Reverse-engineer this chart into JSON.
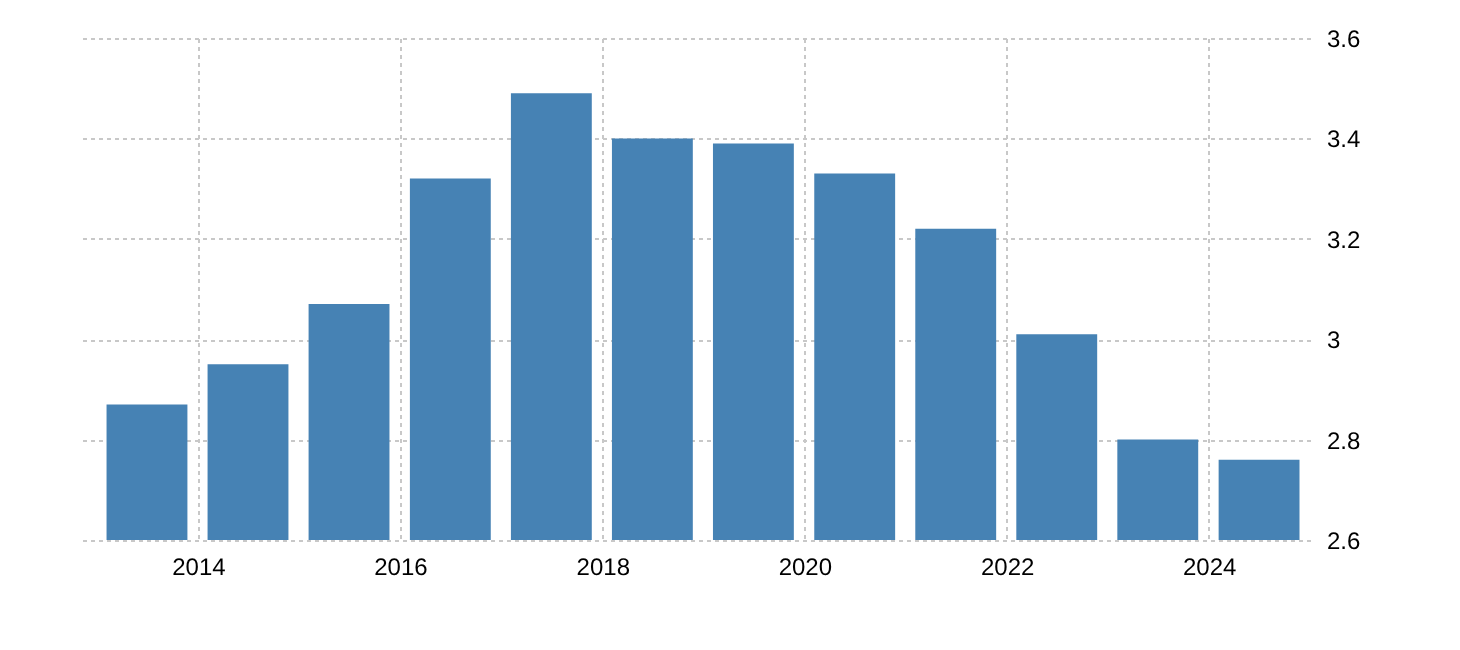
{
  "chart_data": {
    "type": "bar",
    "x": [
      "2013-07-01",
      "2014-07-01",
      "2015-07-01",
      "2016-07-01",
      "2017-07-01",
      "2018-07-01",
      "2019-07-01",
      "2020-07-01",
      "2021-07-01",
      "2022-07-01",
      "2023-07-01",
      "2024-07-01"
    ],
    "values": [
      2.87,
      2.95,
      3.07,
      3.32,
      3.49,
      3.4,
      3.39,
      3.33,
      3.22,
      3.01,
      2.8,
      2.76
    ],
    "color": "#4682b4",
    "xlim": [
      "2012-11",
      "2025-01"
    ],
    "xticks": [
      "2014",
      "2016",
      "2018",
      "2020",
      "2022",
      "2024"
    ],
    "ylim": [
      2.6,
      3.6
    ],
    "yticks": [
      2.6,
      2.8,
      3,
      3.2,
      3.4,
      3.6
    ],
    "grid": true
  }
}
